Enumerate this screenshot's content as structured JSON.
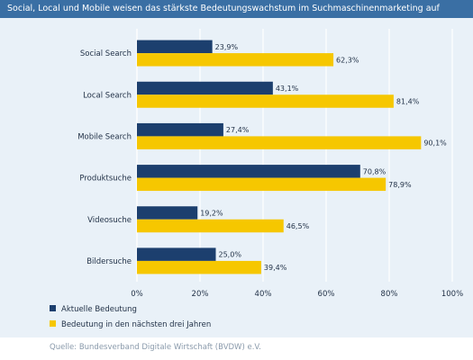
{
  "title": "Social, Local und Mobile weisen das stärkste Bedeutungswachstum im Suchmaschinenmarketing auf",
  "source": "Quelle: Bundesverband Digitale Wirtschaft (BVDW) e.V.",
  "colors": {
    "title_bar": "#3a6fa4",
    "panel": "#e9f1f8",
    "series_current": "#1c3f6e",
    "series_future": "#f6c700"
  },
  "chart_data": {
    "type": "bar",
    "orientation": "horizontal",
    "categories": [
      "Social Search",
      "Local Search",
      "Mobile Search",
      "Produktsuche",
      "Videosuche",
      "Bildersuche"
    ],
    "series": [
      {
        "name": "Aktuelle Bedeutung",
        "values": [
          23.9,
          43.1,
          27.4,
          70.8,
          19.2,
          25.0
        ],
        "labels": [
          "23,9%",
          "43,1%",
          "27,4%",
          "70,8%",
          "19,2%",
          "25,0%"
        ]
      },
      {
        "name": "Bedeutung in den nächsten drei Jahren",
        "values": [
          62.3,
          81.4,
          90.1,
          78.9,
          46.5,
          39.4
        ],
        "labels": [
          "62,3%",
          "81,4%",
          "90,1%",
          "78,9%",
          "46,5%",
          "39,4%"
        ]
      }
    ],
    "xlim": [
      0,
      100
    ],
    "xticks": [
      "0%",
      "20%",
      "40%",
      "60%",
      "80%",
      "100%"
    ],
    "grid": true,
    "legend_position": "bottom-left"
  }
}
